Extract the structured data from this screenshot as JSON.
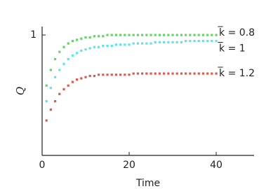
{
  "chart_data": {
    "type": "scatter",
    "x_label": "Time",
    "y_label": "Q",
    "x": [
      1,
      2,
      3,
      4,
      5,
      6,
      7,
      8,
      9,
      10,
      11,
      12,
      13,
      14,
      15,
      16,
      17,
      18,
      19,
      20,
      21,
      22,
      23,
      24,
      25,
      26,
      27,
      28,
      29,
      30,
      31,
      32,
      33,
      34,
      35,
      36,
      37,
      38,
      39,
      40
    ],
    "series": [
      {
        "name": "k̅ = 0.8",
        "color": "#5fd65f",
        "values": [
          0.58,
          0.71,
          0.8,
          0.86,
          0.9,
          0.93,
          0.95,
          0.96,
          0.97,
          0.98,
          0.98,
          0.99,
          0.99,
          0.99,
          1,
          1,
          1,
          1,
          1,
          1,
          1,
          1,
          1,
          1,
          1,
          1,
          1,
          1,
          1,
          1,
          1,
          1,
          1,
          1,
          1,
          1,
          1,
          1,
          1,
          1
        ]
      },
      {
        "name": "k̅ = 1",
        "color": "#5fe3ea",
        "values": [
          0.45,
          0.56,
          0.65,
          0.71,
          0.76,
          0.8,
          0.83,
          0.85,
          0.87,
          0.88,
          0.89,
          0.9,
          0.9,
          0.91,
          0.91,
          0.91,
          0.92,
          0.92,
          0.92,
          0.92,
          0.93,
          0.93,
          0.93,
          0.93,
          0.93,
          0.94,
          0.94,
          0.94,
          0.94,
          0.94,
          0.94,
          0.94,
          0.95,
          0.95,
          0.95,
          0.95,
          0.95,
          0.95,
          0.95,
          0.95
        ]
      },
      {
        "name": "k̅ = 1.2",
        "color": "#e0584f",
        "values": [
          0.29,
          0.38,
          0.45,
          0.51,
          0.55,
          0.58,
          0.61,
          0.63,
          0.64,
          0.65,
          0.66,
          0.66,
          0.67,
          0.67,
          0.67,
          0.67,
          0.67,
          0.67,
          0.67,
          0.67,
          0.68,
          0.68,
          0.68,
          0.68,
          0.68,
          0.68,
          0.68,
          0.68,
          0.68,
          0.68,
          0.68,
          0.68,
          0.68,
          0.68,
          0.68,
          0.68,
          0.68,
          0.68,
          0.68,
          0.68
        ]
      }
    ],
    "xlim": [
      0,
      48.7
    ],
    "ylim": [
      0,
      1.07
    ],
    "xticks": [
      0,
      20,
      40
    ],
    "yticks": [
      1
    ]
  }
}
